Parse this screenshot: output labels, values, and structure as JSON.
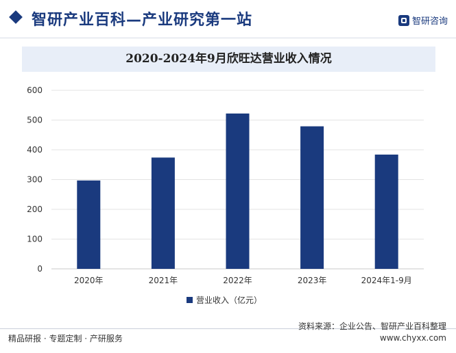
{
  "header": {
    "title": "智研产业百科—产业研究第一站",
    "brand": "智研咨询"
  },
  "colors": {
    "accent": "#1a3a7e",
    "bar": "#1a3a7e",
    "title_bg": "#e8eef8"
  },
  "chart_data": {
    "type": "bar",
    "title": "2020-2024年9月欣旺达营业收入情况",
    "categories": [
      "2020年",
      "2021年",
      "2022年",
      "2023年",
      "2024年1-9月"
    ],
    "series": [
      {
        "name": "营业收入（亿元）",
        "values": [
          297,
          374,
          522,
          479,
          384
        ]
      }
    ],
    "ylim": [
      0,
      600
    ],
    "yticks": [
      0,
      100,
      200,
      300,
      400,
      500,
      600
    ],
    "grid": true,
    "legend": "bottom-center"
  },
  "footer": {
    "left": "精品研报 · 专题定制 · 产研服务",
    "source": "资料来源：企业公告、智研产业百科整理",
    "url": "www.chyxx.com"
  }
}
